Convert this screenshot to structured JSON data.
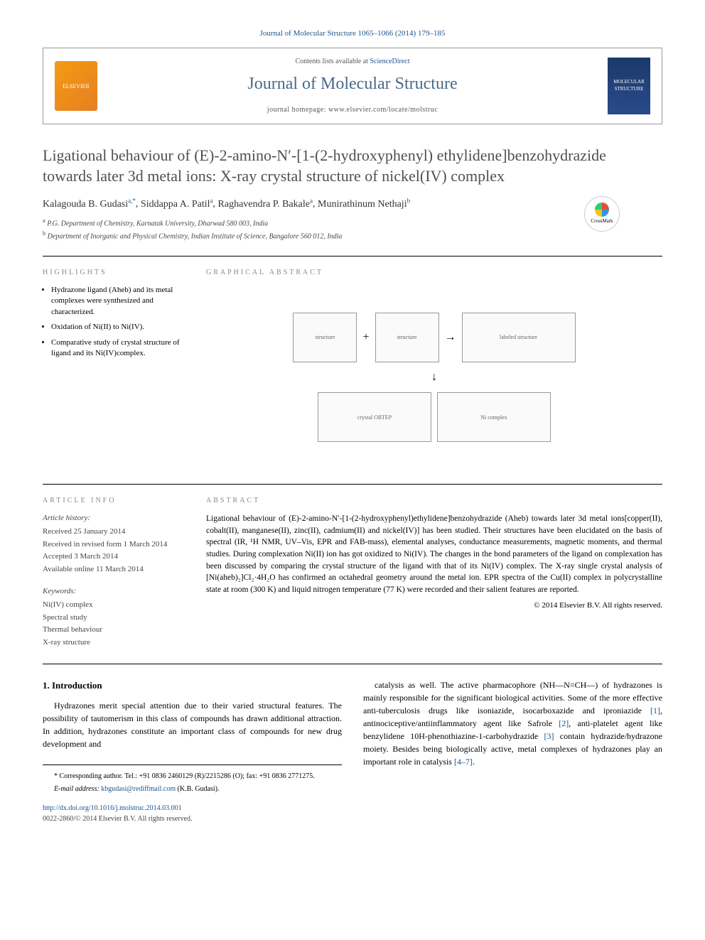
{
  "citation": "Journal of Molecular Structure 1065–1066 (2014) 179–185",
  "header": {
    "contents_prefix": "Contents lists available at ",
    "contents_link": "ScienceDirect",
    "journal": "Journal of Molecular Structure",
    "homepage_label": "journal homepage: ",
    "homepage_url": "www.elsevier.com/locate/molstruc",
    "logo_left": "ELSEVIER",
    "logo_right": "MOLECULAR STRUCTURE"
  },
  "title": "Ligational behaviour of (E)-2-amino-N′-[1-(2-hydroxyphenyl) ethylidene]benzohydrazide towards later 3d metal ions: X-ray crystal structure of nickel(IV) complex",
  "crossmark": "CrossMark",
  "authors": [
    {
      "name": "Kalagouda B. Gudasi",
      "sup": "a,*"
    },
    {
      "name": "Siddappa A. Patil",
      "sup": "a"
    },
    {
      "name": "Raghavendra P. Bakale",
      "sup": "a"
    },
    {
      "name": "Munirathinum Nethaji",
      "sup": "b"
    }
  ],
  "affiliations": [
    {
      "sup": "a",
      "text": "P.G. Department of Chemistry, Karnatak University, Dharwad 580 003, India"
    },
    {
      "sup": "b",
      "text": "Department of Inorganic and Physical Chemistry, Indian Institute of Science, Bangalore 560 012, India"
    }
  ],
  "highlights_head": "HIGHLIGHTS",
  "highlights": [
    "Hydrazone ligand (Aheb) and its metal complexes were synthesized and characterized.",
    "Oxidation of Ni(II) to Ni(IV).",
    "Comparative study of crystal structure of ligand and its Ni(IV)complex."
  ],
  "graphical_head": "GRAPHICAL ABSTRACT",
  "graphical_labels": {
    "reactant1": "structure",
    "reactant2": "structure",
    "product": "labeled structure",
    "crystal": "crystal ORTEP",
    "complex": "Ni complex"
  },
  "article_info_head": "ARTICLE INFO",
  "article_history_label": "Article history:",
  "article_history": [
    "Received 25 January 2014",
    "Received in revised form 1 March 2014",
    "Accepted 3 March 2014",
    "Available online 11 March 2014"
  ],
  "keywords_label": "Keywords:",
  "keywords": [
    "Ni(IV) complex",
    "Spectral study",
    "Thermal behaviour",
    "X-ray structure"
  ],
  "abstract_head": "ABSTRACT",
  "abstract": "Ligational behaviour of (E)-2-amino-N′-[1-(2-hydroxyphenyl)ethylidene]benzohydrazide (Aheb) towards later 3d metal ions[copper(II), cobalt(II), manganese(II), zinc(II), cadmium(II) and nickel(IV)] has been studied. Their structures have been elucidated on the basis of spectral (IR, ¹H NMR, UV–Vis, EPR and FAB-mass), elemental analyses, conductance measurements, magnetic moments, and thermal studies. During complexation Ni(II) ion has got oxidized to Ni(IV). The changes in the bond parameters of the ligand on complexation has been discussed by comparing the crystal structure of the ligand with that of its Ni(IV) complex. The X-ray single crystal analysis of [Ni(aheb)₂]Cl₂·4H₂O has confirmed an octahedral geometry around the metal ion. EPR spectra of the Cu(II) complex in polycrystalline state at room (300 K) and liquid nitrogen temperature (77 K) were recorded and their salient features are reported.",
  "abstract_copyright": "© 2014 Elsevier B.V. All rights reserved.",
  "intro_head": "1. Introduction",
  "intro_p1": "Hydrazones merit special attention due to their varied structural features. The possibility of tautomerism in this class of compounds has drawn additional attraction. In addition, hydrazones constitute an important class of compounds for new drug development and",
  "intro_p2_a": "catalysis as well. The active pharmacophore (NH―N=CH―) of hydrazones is mainly responsible for the significant biological activities. Some of the more effective anti-tuberculosis drugs like isoniazide, isocarboxazide and iproniazide ",
  "intro_p2_b": ", antinociceptive/antiinflammatory agent like Safrole ",
  "intro_p2_c": ", anti-platelet agent like benzylidene 10H-phenothiazine-1-carbohydrazide ",
  "intro_p2_d": " contain hydrazide/hydrazone moiety. Besides being biologically active, metal complexes of hydrazones play an important role in catalysis ",
  "intro_p2_e": ".",
  "refs": {
    "r1": "[1]",
    "r2": "[2]",
    "r3": "[3]",
    "r47": "[4–7]"
  },
  "corresponding": "* Corresponding author. Tel.: +91 0836 2460129 (R)/2215286 (O); fax: +91 0836 2771275.",
  "email_label": "E-mail address: ",
  "email": "kbgudasi@rediffmail.com",
  "email_who": " (K.B. Gudasi).",
  "doi": "http://dx.doi.org/10.1016/j.molstruc.2014.03.001",
  "issn_copyright": "0022-2860/© 2014 Elsevier B.V. All rights reserved.",
  "colors": {
    "link": "#1a5490",
    "journal_title": "#4a6a8a",
    "title": "#505050",
    "section_head": "#888888"
  }
}
